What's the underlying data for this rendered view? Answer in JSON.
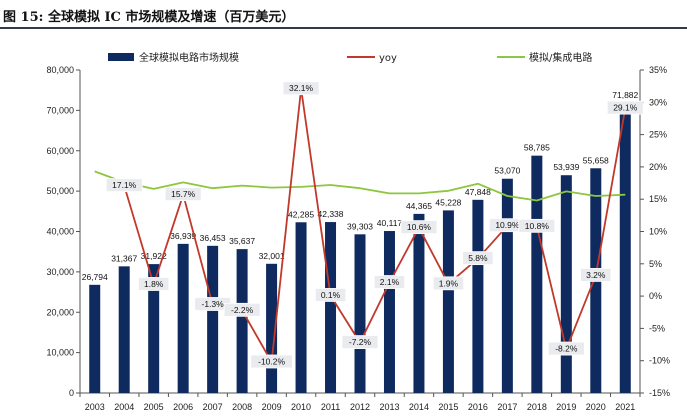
{
  "figure": {
    "title": "图 15: 全球模拟 IC 市场规模及增速（百万美元）"
  },
  "chart_data": {
    "type": "bar",
    "categories": [
      "2003",
      "2004",
      "2005",
      "2006",
      "2007",
      "2008",
      "2009",
      "2010",
      "2011",
      "2012",
      "2013",
      "2014",
      "2015",
      "2016",
      "2017",
      "2018",
      "2019",
      "2020",
      "2021"
    ],
    "series": [
      {
        "name": "全球模拟电路市场规模",
        "type": "bar",
        "axis": "left",
        "color": "#0f2a5e",
        "values": [
          26794,
          31367,
          31922,
          36939,
          36453,
          35637,
          32001,
          42285,
          42338,
          39303,
          40117,
          44365,
          45228,
          47848,
          53070,
          58785,
          53939,
          55658,
          71882
        ]
      },
      {
        "name": "yoy",
        "type": "line",
        "axis": "right",
        "unit": "%",
        "color": "#c0392b",
        "values": [
          null,
          17.1,
          1.8,
          15.7,
          -1.3,
          -2.2,
          -10.2,
          32.1,
          0.1,
          -7.2,
          2.1,
          10.6,
          1.9,
          5.8,
          10.9,
          10.8,
          -8.2,
          3.2,
          29.1
        ]
      },
      {
        "name": "模拟/集成电路",
        "type": "line",
        "axis": "right",
        "unit": "%",
        "color": "#8dc63f",
        "values": [
          19.3,
          17.6,
          16.6,
          17.6,
          16.7,
          17.1,
          16.8,
          16.9,
          17.2,
          16.7,
          15.9,
          15.9,
          16.3,
          17.4,
          15.5,
          14.8,
          16.2,
          15.5,
          15.7
        ]
      }
    ],
    "y_left": {
      "min": 0,
      "max": 80000,
      "step": 10000,
      "ticks": [
        "0",
        "10,000",
        "20,000",
        "30,000",
        "40,000",
        "50,000",
        "60,000",
        "70,000",
        "80,000"
      ]
    },
    "y_right": {
      "min": -15,
      "max": 35,
      "step": 5,
      "ticks": [
        "-15%",
        "-10%",
        "-5%",
        "0%",
        "5%",
        "10%",
        "15%",
        "20%",
        "25%",
        "30%",
        "35%"
      ]
    },
    "bar_labels": [
      "26,794",
      "31,367",
      "31,922",
      "36,939",
      "36,453",
      "35,637",
      "32,001",
      "42,285",
      "42,338",
      "39,303",
      "40,117",
      "44,365",
      "45,228",
      "47,848",
      "53,070",
      "58,785",
      "53,939",
      "55,658",
      "71,882"
    ],
    "yoy_labels": [
      "",
      "17.1%",
      "1.8%",
      "15.7%",
      "-1.3%",
      "-2.2%",
      "-10.2%",
      "32.1%",
      "0.1%",
      "-7.2%",
      "2.1%",
      "10.6%",
      "1.9%",
      "5.8%",
      "10.9%",
      "10.8%",
      "-8.2%",
      "3.2%",
      "29.1%"
    ],
    "grid": false,
    "legend_position": "top"
  }
}
